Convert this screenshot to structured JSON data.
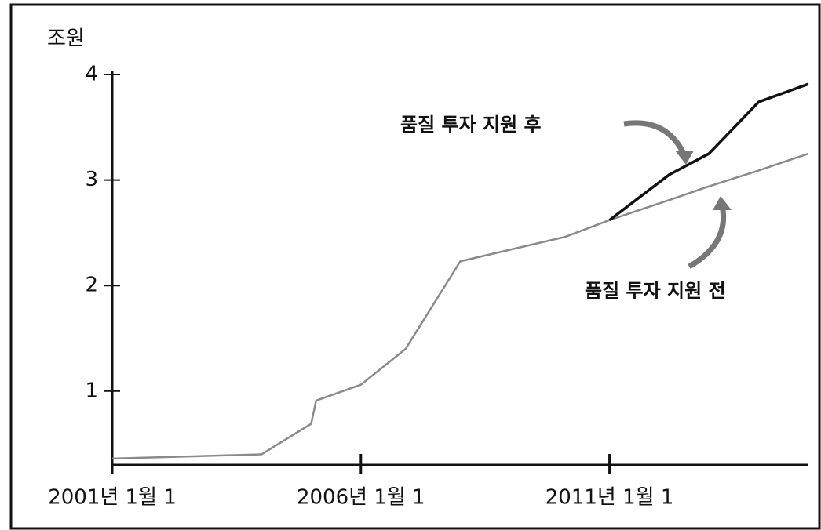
{
  "chart_data": {
    "type": "line",
    "y_label": "조원",
    "x": [
      2001,
      2004,
      2005,
      2005.1,
      2006,
      2006.9,
      2008,
      2010.1,
      2011,
      2012.2,
      2013,
      2014,
      2015
    ],
    "series": [
      {
        "name": "품질 투자 지원 후",
        "color": "#111111",
        "values": [
          null,
          null,
          null,
          null,
          null,
          null,
          null,
          null,
          2.62,
          3.05,
          3.25,
          3.74,
          3.91
        ]
      },
      {
        "name": "품질 투자 지원 전",
        "color": "#8a8a8a",
        "values": [
          0.36,
          0.4,
          0.69,
          0.91,
          1.06,
          1.4,
          2.23,
          2.46,
          2.62,
          2.81,
          2.94,
          3.09,
          3.25
        ]
      }
    ],
    "xlim": [
      2001,
      2015
    ],
    "xticks": [
      {
        "value": 2001,
        "label": "2001년 1월 1"
      },
      {
        "value": 2006,
        "label": "2006년 1월 1"
      },
      {
        "value": 2011,
        "label": "2011년 1월 1"
      }
    ],
    "ylim": [
      0.3,
      4
    ],
    "yticks": [
      1,
      2,
      3,
      4
    ],
    "grid": false
  }
}
